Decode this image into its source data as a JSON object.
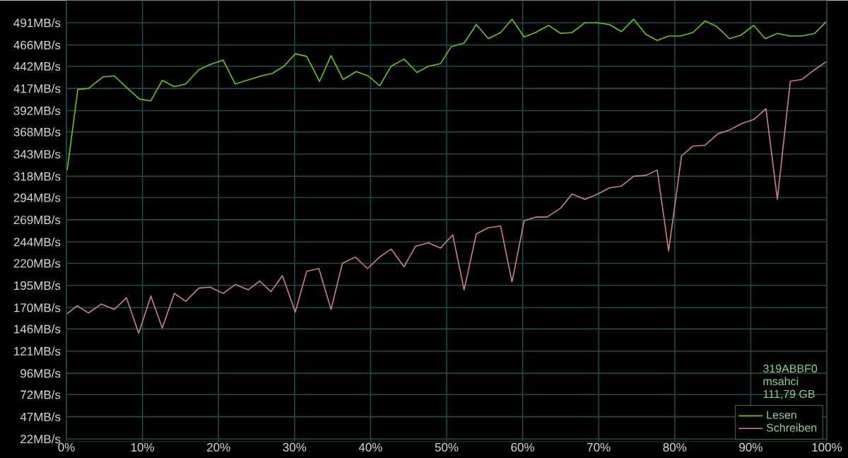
{
  "chart_data": {
    "type": "line",
    "xlim": [
      0,
      100
    ],
    "ylim": [
      19,
      516
    ],
    "xticks": [
      {
        "value": 0,
        "label": "0%"
      },
      {
        "value": 10,
        "label": "10%"
      },
      {
        "value": 20,
        "label": "20%"
      },
      {
        "value": 30,
        "label": "30%"
      },
      {
        "value": 40,
        "label": "40%"
      },
      {
        "value": 50,
        "label": "50%"
      },
      {
        "value": 60,
        "label": "60%"
      },
      {
        "value": 70,
        "label": "70%"
      },
      {
        "value": 80,
        "label": "80%"
      },
      {
        "value": 90,
        "label": "90%"
      },
      {
        "value": 100,
        "label": "100%"
      }
    ],
    "yticks": [
      {
        "value": 22,
        "label": "22MB/s"
      },
      {
        "value": 47,
        "label": "47MB/s"
      },
      {
        "value": 72,
        "label": "72MB/s"
      },
      {
        "value": 96,
        "label": "96MB/s"
      },
      {
        "value": 121,
        "label": "121MB/s"
      },
      {
        "value": 146,
        "label": "146MB/s"
      },
      {
        "value": 170,
        "label": "170MB/s"
      },
      {
        "value": 195,
        "label": "195MB/s"
      },
      {
        "value": 220,
        "label": "220MB/s"
      },
      {
        "value": 244,
        "label": "244MB/s"
      },
      {
        "value": 269,
        "label": "269MB/s"
      },
      {
        "value": 294,
        "label": "294MB/s"
      },
      {
        "value": 318,
        "label": "318MB/s"
      },
      {
        "value": 343,
        "label": "343MB/s"
      },
      {
        "value": 368,
        "label": "368MB/s"
      },
      {
        "value": 392,
        "label": "392MB/s"
      },
      {
        "value": 417,
        "label": "417MB/s"
      },
      {
        "value": 442,
        "label": "442MB/s"
      },
      {
        "value": 466,
        "label": "466MB/s"
      },
      {
        "value": 491,
        "label": "491MB/s"
      }
    ],
    "grid": true,
    "legend": "bottom right",
    "annotations": [
      "319ABBF0",
      "msahci",
      "111,79 GB"
    ],
    "series": [
      {
        "name": "Lesen",
        "color": "#66cc00",
        "x": [
          0.1,
          1.5,
          2.9,
          4.8,
          6.3,
          7.8,
          9.6,
          11.1,
          12.6,
          14.2,
          15.7,
          17.4,
          18.9,
          20.6,
          22.2,
          24.1,
          25.6,
          27.1,
          28.6,
          30.1,
          31.6,
          33.3,
          34.8,
          36.4,
          38.1,
          39.7,
          41.2,
          42.7,
          44.4,
          46.1,
          47.6,
          49.2,
          50.6,
          52.3,
          53.9,
          55.5,
          57.1,
          58.6,
          60.2,
          61.7,
          63.4,
          65.0,
          66.5,
          68.2,
          69.9,
          71.4,
          73.0,
          74.6,
          76.2,
          77.7,
          79.2,
          80.7,
          82.4,
          84.0,
          85.5,
          87.2,
          88.7,
          90.4,
          91.9,
          93.5,
          95.2,
          96.7,
          98.4,
          99.9
        ],
        "values": [
          325,
          416,
          417,
          430,
          431,
          419,
          405,
          403,
          426,
          419,
          422,
          438,
          444,
          449,
          422,
          427,
          431,
          434,
          442,
          456,
          453,
          425,
          454,
          427,
          436,
          431,
          420,
          442,
          450,
          435,
          442,
          445,
          464,
          468,
          489,
          473,
          480,
          495,
          475,
          480,
          488,
          479,
          480,
          491,
          491,
          489,
          481,
          495,
          478,
          471,
          476,
          476,
          480,
          493,
          487,
          473,
          477,
          488,
          473,
          479,
          476,
          476,
          479,
          492
        ]
      },
      {
        "name": "Schreiben",
        "color": "#d08080",
        "x": [
          0.1,
          1.4,
          2.9,
          4.6,
          6.3,
          7.9,
          9.5,
          11.1,
          12.6,
          14.2,
          15.7,
          17.4,
          18.9,
          20.6,
          22.2,
          23.9,
          25.4,
          26.9,
          28.4,
          30.1,
          31.6,
          33.2,
          34.8,
          36.3,
          38.0,
          39.6,
          41.2,
          42.7,
          44.4,
          45.9,
          47.6,
          49.2,
          50.8,
          52.3,
          53.9,
          55.5,
          57.1,
          58.6,
          60.2,
          61.7,
          63.2,
          65.0,
          66.5,
          68.2,
          69.9,
          71.4,
          73.0,
          74.6,
          76.2,
          77.7,
          79.2,
          80.9,
          82.4,
          84.0,
          85.7,
          87.2,
          88.7,
          90.4,
          92.0,
          93.5,
          95.2,
          96.7,
          98.4,
          99.9
        ],
        "values": [
          163,
          172,
          164,
          174,
          168,
          181,
          141,
          183,
          147,
          186,
          177,
          192,
          193,
          186,
          196,
          190,
          200,
          188,
          206,
          165,
          211,
          214,
          168,
          220,
          227,
          214,
          227,
          236,
          216,
          239,
          243,
          237,
          252,
          190,
          253,
          260,
          262,
          199,
          268,
          272,
          272,
          282,
          298,
          292,
          298,
          305,
          307,
          318,
          319,
          325,
          234,
          341,
          352,
          353,
          366,
          370,
          377,
          382,
          394,
          292,
          425,
          427,
          438,
          447
        ]
      }
    ]
  }
}
